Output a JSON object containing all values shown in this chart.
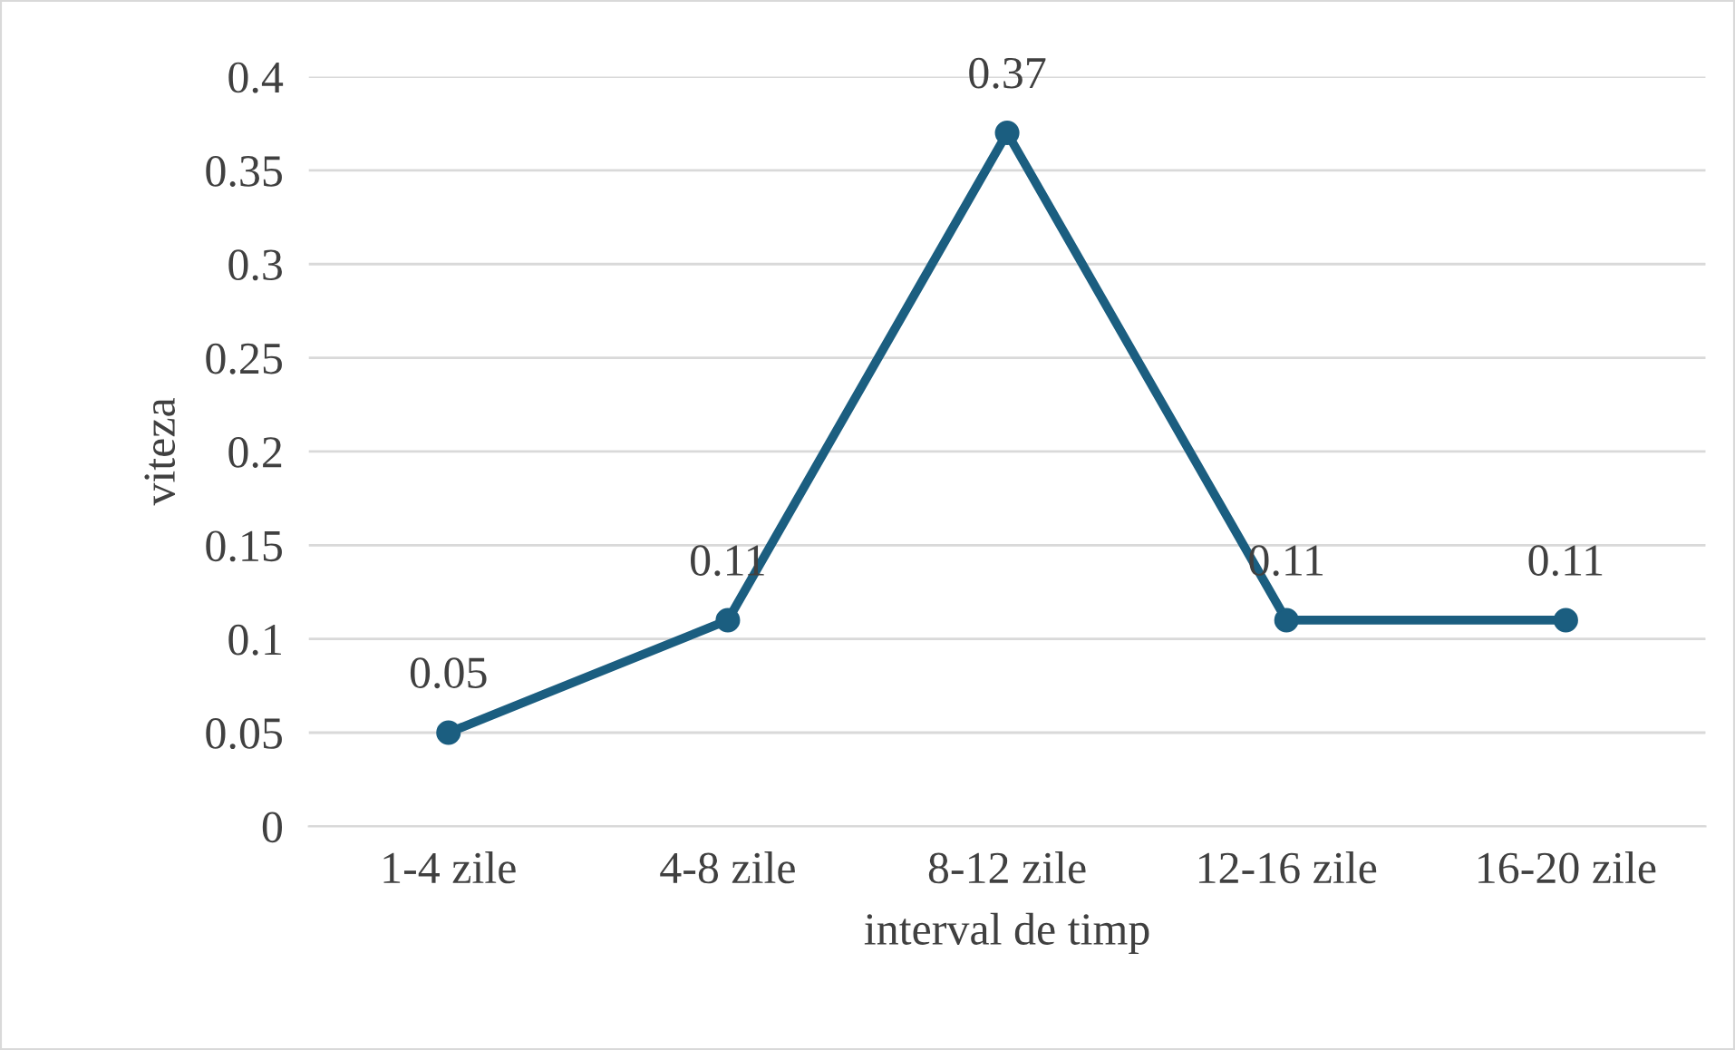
{
  "chart_data": {
    "type": "line",
    "xlabel": "interval de timp",
    "ylabel": "viteza",
    "categories": [
      "1-4 zile",
      "4-8 zile",
      "8-12 zile",
      "12-16 zile",
      "16-20 zile"
    ],
    "series": [
      {
        "color": "#1b5e80",
        "values": [
          0.05,
          0.11,
          0.37,
          0.11,
          0.11
        ]
      }
    ],
    "ylim": [
      0,
      0.4
    ],
    "yticks": [
      0,
      0.05,
      0.1,
      0.15,
      0.2,
      0.25,
      0.3,
      0.35,
      0.4
    ],
    "grid": "y",
    "marker": "circle",
    "line_style": "solid",
    "data_labels": true,
    "legend": false
  }
}
